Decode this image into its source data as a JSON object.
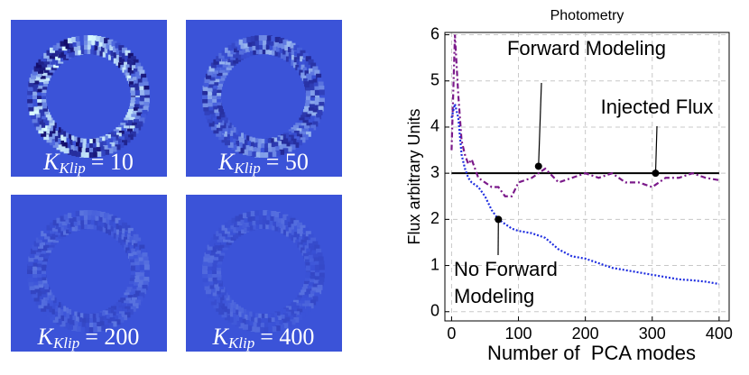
{
  "panels": [
    {
      "symbol": "K",
      "subscript": "Klip",
      "rhs": "= 10"
    },
    {
      "symbol": "K",
      "subscript": "Klip",
      "rhs": "= 50"
    },
    {
      "symbol": "K",
      "subscript": "Klip",
      "rhs": "= 200"
    },
    {
      "symbol": "K",
      "subscript": "Klip",
      "rhs": "= 400"
    }
  ],
  "chart_data": {
    "type": "line",
    "title": "Photometry",
    "x_label": "Number of  PCA modes",
    "y_label": "Flux arbitrary Units",
    "x": [
      0,
      5,
      10,
      15,
      20,
      25,
      30,
      40,
      50,
      60,
      70,
      80,
      90,
      100,
      120,
      140,
      160,
      180,
      200,
      220,
      240,
      260,
      280,
      300,
      320,
      340,
      360,
      380,
      400
    ],
    "series": [
      {
        "name": "Forward Modeling",
        "color": "#7b1a8a",
        "dash": "6,3,2,3",
        "values": [
          3.5,
          6.0,
          4.7,
          3.7,
          3.4,
          3.2,
          3.3,
          2.9,
          2.8,
          2.7,
          2.7,
          2.5,
          2.5,
          2.8,
          2.9,
          3.1,
          2.8,
          2.9,
          3.0,
          2.9,
          3.0,
          2.8,
          2.8,
          2.7,
          2.9,
          2.9,
          3.0,
          2.9,
          2.85
        ]
      },
      {
        "name": "No Forward Modeling",
        "color": "#1f2ee0",
        "dash": "2,2",
        "values": [
          4.2,
          4.5,
          4.2,
          3.4,
          3.1,
          2.9,
          2.8,
          2.7,
          2.5,
          2.2,
          2.0,
          1.9,
          1.8,
          1.75,
          1.7,
          1.6,
          1.35,
          1.2,
          1.15,
          1.05,
          0.95,
          0.9,
          0.85,
          0.8,
          0.75,
          0.7,
          0.68,
          0.65,
          0.6
        ]
      }
    ],
    "reference_line": {
      "value": 3,
      "label": "Injected Flux",
      "color": "#000000"
    },
    "annotations": [
      {
        "lines": [
          "Forward Modeling"
        ],
        "x": 130,
        "y": 3.15
      },
      {
        "lines": [
          "Injected Flux"
        ],
        "x": 305,
        "y": 3
      },
      {
        "lines": [
          "No Forward",
          "Modeling"
        ],
        "x": 70,
        "y": 2
      }
    ],
    "xlim": [
      -10,
      415
    ],
    "ylim": [
      -0.2,
      6.05
    ],
    "xticks": [
      0,
      100,
      200,
      300,
      400
    ],
    "yticks": [
      0,
      1,
      2,
      3,
      4,
      5,
      6
    ],
    "grid": true
  }
}
